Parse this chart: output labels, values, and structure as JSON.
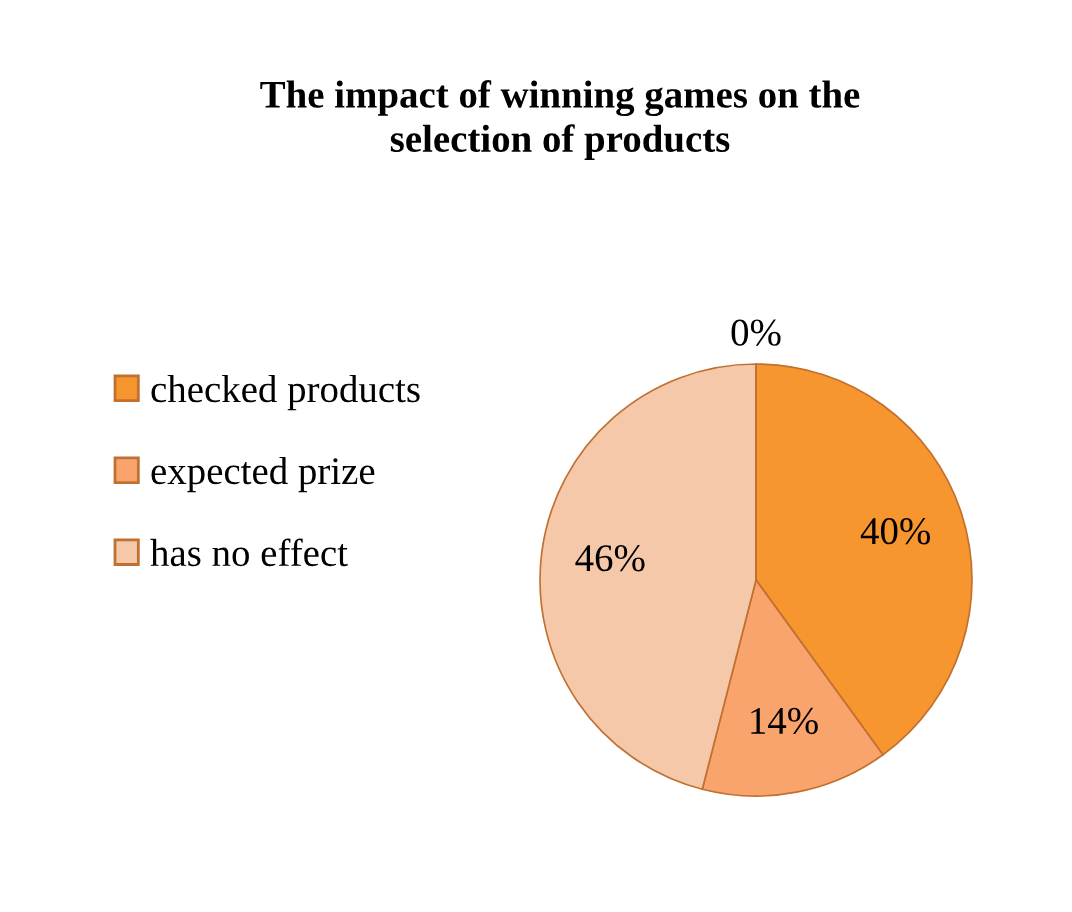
{
  "chart_data": {
    "type": "pie",
    "title": "The impact of winning games on the\nselection of products",
    "categories": [
      "checked products",
      "expected prize",
      "has no effect",
      null
    ],
    "values": [
      40,
      14,
      46,
      0
    ],
    "colors": [
      "#f7952e",
      "#f9a46c",
      "#f5c8a9",
      "#f0b080"
    ],
    "value_labels": [
      "40%",
      "14%",
      "46%",
      "0%"
    ],
    "legend": "left"
  }
}
